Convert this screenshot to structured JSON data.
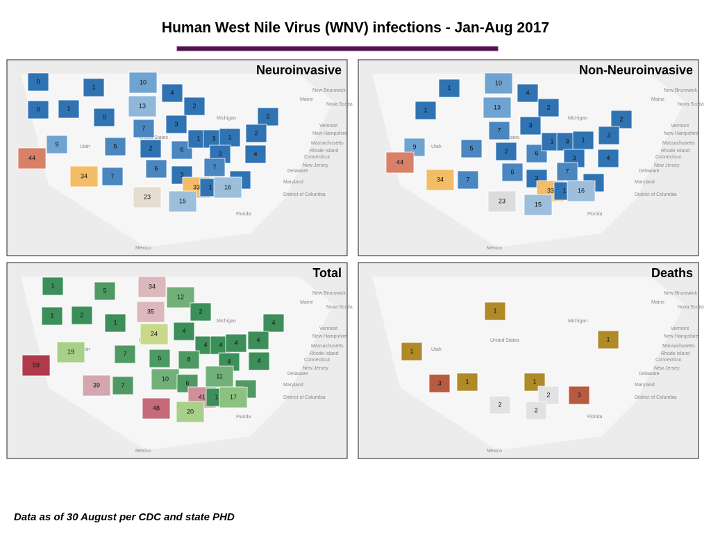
{
  "title": "Human West Nile Virus (WNV) infections - Jan-Aug 2017",
  "footer": "Data as of 30 August per CDC and state PHD",
  "basemap_labels": [
    "Mexico",
    "Florida",
    "Maryland",
    "District of Columbia",
    "New Jersey",
    "Delaware",
    "Connecticut",
    "Rhode Island",
    "Massachusetts",
    "New Hampshire",
    "Vermont",
    "Maine",
    "New Brunswick",
    "Nova Scotia",
    "Michigan",
    "Utah",
    "United States"
  ],
  "panels": [
    {
      "title": "Neuroinvasive",
      "regions": [
        {
          "label": 0,
          "color": "#2f73b3"
        },
        {
          "label": 1,
          "color": "#2f73b3"
        },
        {
          "label": 10,
          "color": "#6fa3d1"
        },
        {
          "label": 4,
          "color": "#2f73b3"
        },
        {
          "label": 0,
          "color": "#2f73b3"
        },
        {
          "label": 1,
          "color": "#2f73b3"
        },
        {
          "label": 0,
          "color": "#2f73b3"
        },
        {
          "label": 13,
          "color": "#8fb7dc"
        },
        {
          "label": 2,
          "color": "#2f73b3"
        },
        {
          "label": 2,
          "color": "#2f73b3"
        },
        {
          "label": 2,
          "color": "#2f73b3"
        },
        {
          "label": 7,
          "color": "#4a86c0"
        },
        {
          "label": 3,
          "color": "#2f73b3"
        },
        {
          "label": 9,
          "color": "#6fa3d1"
        },
        {
          "label": 5,
          "color": "#4a86c0"
        },
        {
          "label": 2,
          "color": "#2f73b3"
        },
        {
          "label": 6,
          "color": "#4a86c0"
        },
        {
          "label": 1,
          "color": "#2f73b3"
        },
        {
          "label": 3,
          "color": "#2f73b3"
        },
        {
          "label": 1,
          "color": "#2f73b3"
        },
        {
          "label": 3,
          "color": "#2f73b3"
        },
        {
          "label": 4,
          "color": "#2f73b3"
        },
        {
          "label": 44,
          "color": "#d98068"
        },
        {
          "label": 6,
          "color": "#4a86c0"
        },
        {
          "label": 7,
          "color": "#4a86c0"
        },
        {
          "label": 3,
          "color": "#2f73b3"
        },
        {
          "label": 3,
          "color": "#2f73b3"
        },
        {
          "label": 34,
          "color": "#f2bd66"
        },
        {
          "label": 7,
          "color": "#4a86c0"
        },
        {
          "label": 33,
          "color": "#f2bd66"
        },
        {
          "label": 1,
          "color": "#2f73b3"
        },
        {
          "label": 16,
          "color": "#9dbfdc"
        },
        {
          "label": 15,
          "color": "#9dbfdc"
        },
        {
          "label": 23,
          "color": "#e4ddd0"
        }
      ]
    },
    {
      "title": "Non-Neuroinvasive",
      "regions": [
        {
          "label": 10,
          "color": "#6fa3d1"
        },
        {
          "label": 1,
          "color": "#2f73b3"
        },
        {
          "label": 4,
          "color": "#2f73b3"
        },
        {
          "label": 13,
          "color": "#6fa3d1"
        },
        {
          "label": 2,
          "color": "#2f73b3"
        },
        {
          "label": 1,
          "color": "#2f73b3"
        },
        {
          "label": 7,
          "color": "#4a86c0"
        },
        {
          "label": 3,
          "color": "#2f73b3"
        },
        {
          "label": 2,
          "color": "#2f73b3"
        },
        {
          "label": 2,
          "color": "#2f73b3"
        },
        {
          "label": 9,
          "color": "#6fa3d1"
        },
        {
          "label": 5,
          "color": "#4a86c0"
        },
        {
          "label": 2,
          "color": "#2f73b3"
        },
        {
          "label": 6,
          "color": "#4a86c0"
        },
        {
          "label": 1,
          "color": "#2f73b3"
        },
        {
          "label": 3,
          "color": "#2f73b3"
        },
        {
          "label": 1,
          "color": "#2f73b3"
        },
        {
          "label": 3,
          "color": "#2f73b3"
        },
        {
          "label": 4,
          "color": "#2f73b3"
        },
        {
          "label": 44,
          "color": "#d98068"
        },
        {
          "label": 6,
          "color": "#4a86c0"
        },
        {
          "label": 7,
          "color": "#4a86c0"
        },
        {
          "label": 34,
          "color": "#f2bd66"
        },
        {
          "label": 7,
          "color": "#4a86c0"
        },
        {
          "label": 3,
          "color": "#2f73b3"
        },
        {
          "label": 3,
          "color": "#2f73b3"
        },
        {
          "label": 33,
          "color": "#f2bd66"
        },
        {
          "label": 1,
          "color": "#2f73b3"
        },
        {
          "label": 16,
          "color": "#9dbfdc"
        },
        {
          "label": 15,
          "color": "#9dbfdc"
        },
        {
          "label": 23,
          "color": "#dcdcdc"
        }
      ]
    },
    {
      "title": "Total",
      "regions": [
        {
          "label": 1,
          "color": "#3d8f5a"
        },
        {
          "label": 5,
          "color": "#4f9a63"
        },
        {
          "label": 34,
          "color": "#dcb8bc"
        },
        {
          "label": 12,
          "color": "#72b07a"
        },
        {
          "label": 35,
          "color": "#dcb8bc"
        },
        {
          "label": 2,
          "color": "#3d8f5a"
        },
        {
          "label": 1,
          "color": "#3d8f5a"
        },
        {
          "label": 2,
          "color": "#3d8f5a"
        },
        {
          "label": 1,
          "color": "#3d8f5a"
        },
        {
          "label": 4,
          "color": "#3d8f5a"
        },
        {
          "label": 24,
          "color": "#c9d98a"
        },
        {
          "label": 4,
          "color": "#3d8f5a"
        },
        {
          "label": 4,
          "color": "#3d8f5a"
        },
        {
          "label": 4,
          "color": "#3d8f5a"
        },
        {
          "label": 4,
          "color": "#3d8f5a"
        },
        {
          "label": 4,
          "color": "#3d8f5a"
        },
        {
          "label": 19,
          "color": "#a8d08a"
        },
        {
          "label": 7,
          "color": "#4f9a63"
        },
        {
          "label": 5,
          "color": "#4f9a63"
        },
        {
          "label": 8,
          "color": "#4f9a63"
        },
        {
          "label": 4,
          "color": "#3d8f5a"
        },
        {
          "label": 4,
          "color": "#3d8f5a"
        },
        {
          "label": 59,
          "color": "#b03a4a"
        },
        {
          "label": 11,
          "color": "#72b07a"
        },
        {
          "label": 10,
          "color": "#72b07a"
        },
        {
          "label": 39,
          "color": "#d4a6ae"
        },
        {
          "label": 7,
          "color": "#4f9a63"
        },
        {
          "label": 6,
          "color": "#4f9a63"
        },
        {
          "label": 5,
          "color": "#4f9a63"
        },
        {
          "label": 41,
          "color": "#cf8f9a"
        },
        {
          "label": 1,
          "color": "#3d8f5a"
        },
        {
          "label": 17,
          "color": "#8cc27f"
        },
        {
          "label": 48,
          "color": "#c46a78"
        },
        {
          "label": 20,
          "color": "#a8d08a"
        }
      ]
    },
    {
      "title": "Deaths",
      "regions": [
        {
          "label": 1,
          "color": "#b08a28"
        },
        {
          "label": 1,
          "color": "#b08a28"
        },
        {
          "label": 1,
          "color": "#b08a28"
        },
        {
          "label": 3,
          "color": "#b85a40"
        },
        {
          "label": 1,
          "color": "#b08a28"
        },
        {
          "label": 1,
          "color": "#b08a28"
        },
        {
          "label": 2,
          "color": "#e2e2e2"
        },
        {
          "label": 3,
          "color": "#b85a40"
        },
        {
          "label": 2,
          "color": "#e2e2e2"
        },
        {
          "label": 2,
          "color": "#e2e2e2"
        }
      ]
    }
  ]
}
